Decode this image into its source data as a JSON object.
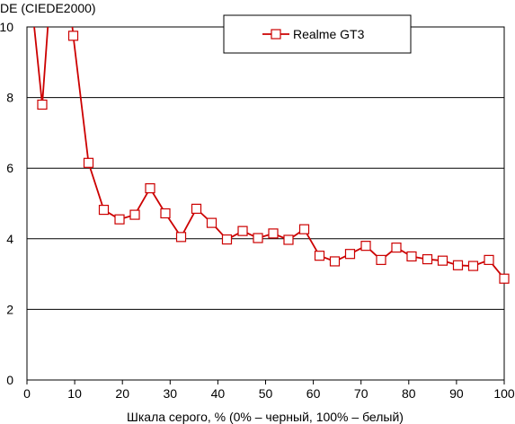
{
  "chart_data": {
    "type": "line",
    "ylabel": "DE (CIEDE2000)",
    "xlabel": "Шкала серого, % (0% – черный, 100% – белый)",
    "xlim": [
      0,
      100
    ],
    "ylim": [
      0,
      10
    ],
    "x_ticks": [
      0,
      10,
      20,
      30,
      40,
      50,
      60,
      70,
      80,
      90,
      100
    ],
    "y_ticks": [
      0,
      2,
      4,
      6,
      8,
      10
    ],
    "grid": "horizontal",
    "legend_position": "top-center",
    "series": [
      {
        "name": "Realme GT3",
        "color": "#cc0000",
        "marker": "square-open",
        "x": [
          0.0,
          3.2,
          6.5,
          9.7,
          12.9,
          16.1,
          19.4,
          22.6,
          25.8,
          29.0,
          32.3,
          35.5,
          38.7,
          41.9,
          45.2,
          48.4,
          51.6,
          54.8,
          58.1,
          61.3,
          64.5,
          67.7,
          71.0,
          74.2,
          77.4,
          80.6,
          83.9,
          87.1,
          90.3,
          93.5,
          96.8,
          100.0
        ],
        "y": [
          12.0,
          7.8,
          14.0,
          9.75,
          6.15,
          4.82,
          4.55,
          4.68,
          5.43,
          4.72,
          4.05,
          4.85,
          4.45,
          3.98,
          4.22,
          4.02,
          4.15,
          3.97,
          4.27,
          3.52,
          3.36,
          3.57,
          3.8,
          3.4,
          3.75,
          3.5,
          3.42,
          3.38,
          3.25,
          3.23,
          3.4,
          2.87
        ],
        "visible_markers_from_index": 1
      }
    ]
  }
}
